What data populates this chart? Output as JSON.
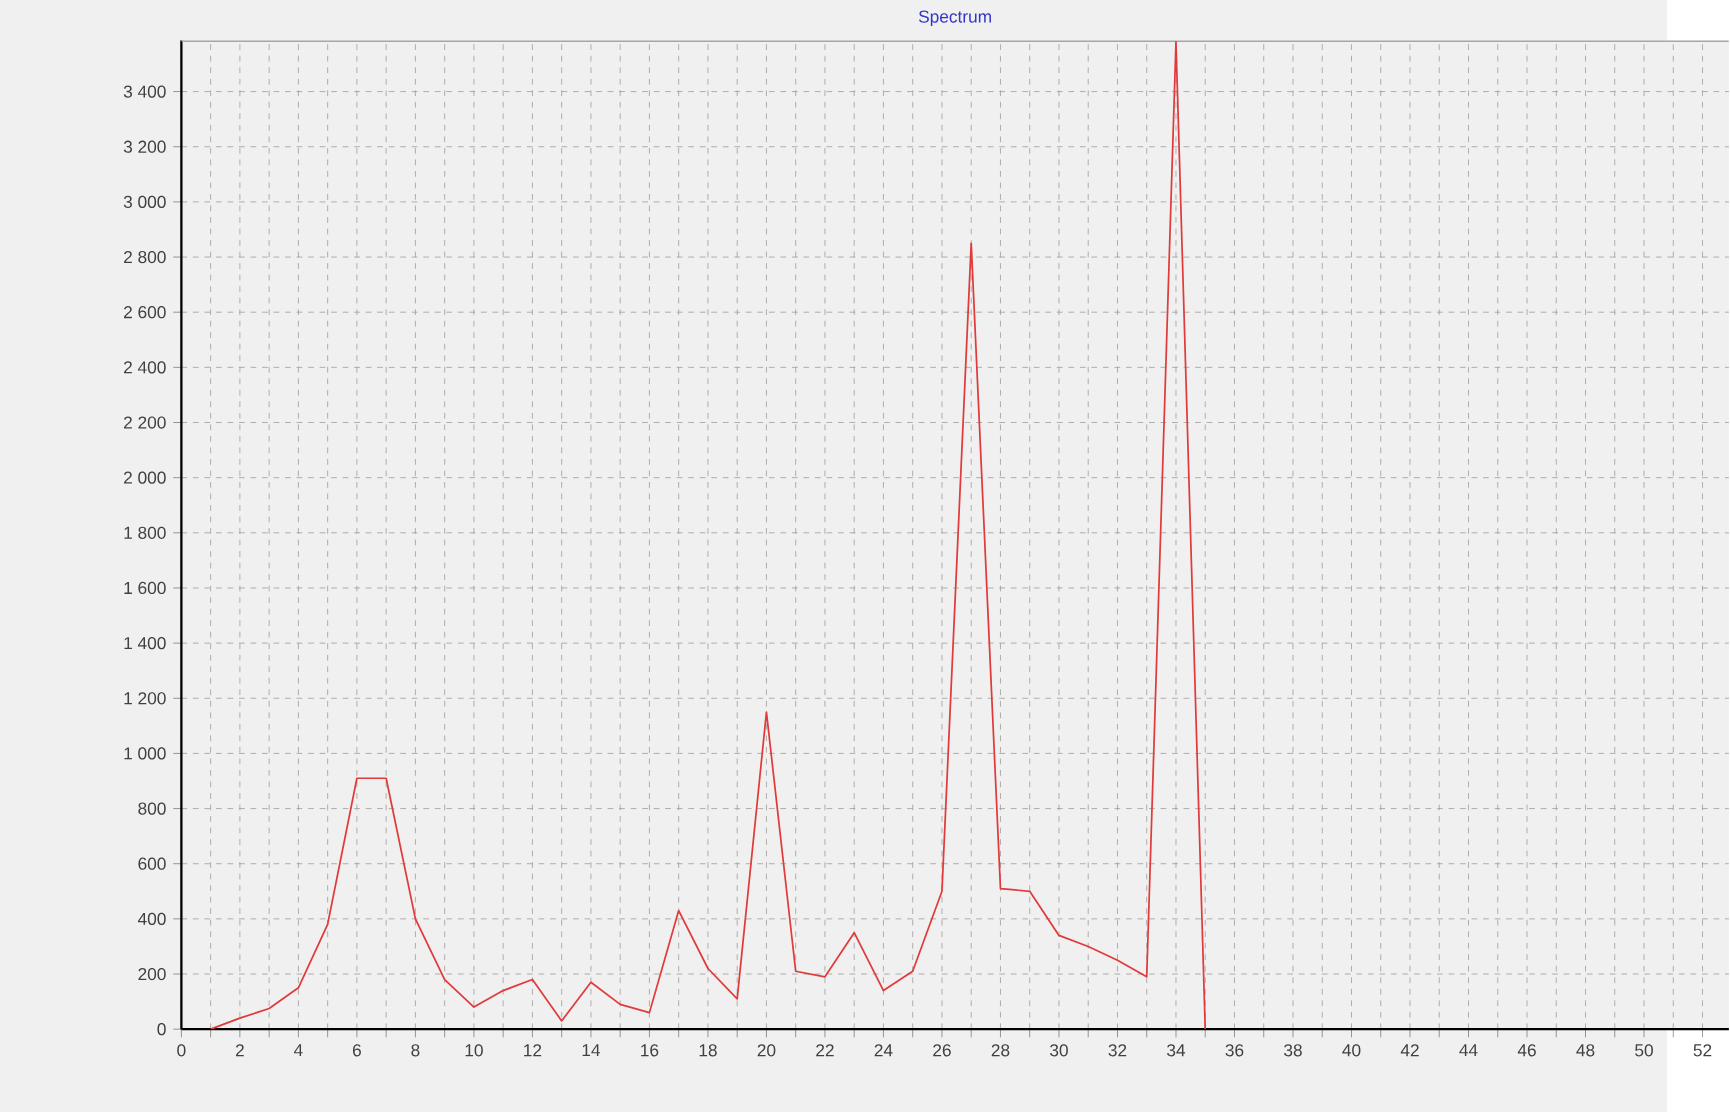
{
  "chart_data": {
    "type": "line",
    "title": "Spectrum",
    "x": [
      1,
      2,
      3,
      4,
      5,
      6,
      7,
      8,
      9,
      10,
      11,
      12,
      13,
      14,
      15,
      16,
      17,
      18,
      19,
      20,
      21,
      22,
      23,
      24,
      25,
      26,
      27,
      28,
      29,
      30,
      31,
      32,
      33,
      34,
      35
    ],
    "series": [
      {
        "color": "#e03a3a",
        "values": [
          0,
          40,
          75,
          150,
          380,
          910,
          910,
          400,
          180,
          80,
          140,
          180,
          30,
          170,
          90,
          60,
          430,
          220,
          110,
          1150,
          210,
          190,
          350,
          140,
          210,
          500,
          2850,
          510,
          500,
          340,
          300,
          250,
          190,
          3580,
          0
        ]
      }
    ],
    "xlim": [
      0,
      52.9
    ],
    "ylim": [
      0,
      3585
    ],
    "xticks": [
      0,
      {
        "value": 1,
        "label": null
      },
      2,
      {
        "value": 3,
        "label": null
      },
      4,
      {
        "value": 5,
        "label": null
      },
      6,
      {
        "value": 7,
        "label": null
      },
      8,
      {
        "value": 9,
        "label": null
      },
      10,
      {
        "value": 11,
        "label": null
      },
      12,
      {
        "value": 13,
        "label": null
      },
      14,
      {
        "value": 15,
        "label": null
      },
      16,
      {
        "value": 17,
        "label": null
      },
      18,
      {
        "value": 19,
        "label": null
      },
      20,
      {
        "value": 21,
        "label": null
      },
      22,
      {
        "value": 23,
        "label": null
      },
      24,
      {
        "value": 25,
        "label": null
      },
      26,
      {
        "value": 27,
        "label": null
      },
      28,
      {
        "value": 29,
        "label": null
      },
      30,
      {
        "value": 31,
        "label": null
      },
      32,
      {
        "value": 33,
        "label": null
      },
      34,
      {
        "value": 35,
        "label": null
      },
      36,
      {
        "value": 37,
        "label": null
      },
      38,
      {
        "value": 39,
        "label": null
      },
      40,
      {
        "value": 41,
        "label": null
      },
      42,
      {
        "value": 43,
        "label": null
      },
      44,
      {
        "value": 45,
        "label": null
      },
      46,
      {
        "value": 47,
        "label": null
      },
      48,
      {
        "value": 49,
        "label": null
      },
      50,
      {
        "value": 51,
        "label": null
      },
      52
    ],
    "yticks": [
      0,
      200,
      400,
      600,
      800,
      {
        "value": 1000,
        "label": "1 000"
      },
      {
        "value": 1200,
        "label": "1 200"
      },
      {
        "value": 1400,
        "label": "1 400"
      },
      {
        "value": 1600,
        "label": "1 600"
      },
      {
        "value": 1800,
        "label": "1 800"
      },
      {
        "value": 2000,
        "label": "2 000"
      },
      {
        "value": 2200,
        "label": "2 200"
      },
      {
        "value": 2400,
        "label": "2 400"
      },
      {
        "value": 2600,
        "label": "2 600"
      },
      {
        "value": 2800,
        "label": "2 800"
      },
      {
        "value": 3000,
        "label": "3 000"
      },
      {
        "value": 3200,
        "label": "3 200"
      },
      {
        "value": 3400,
        "label": "3 400"
      }
    ],
    "grid": true,
    "marker": "none",
    "line_style": "solid"
  }
}
